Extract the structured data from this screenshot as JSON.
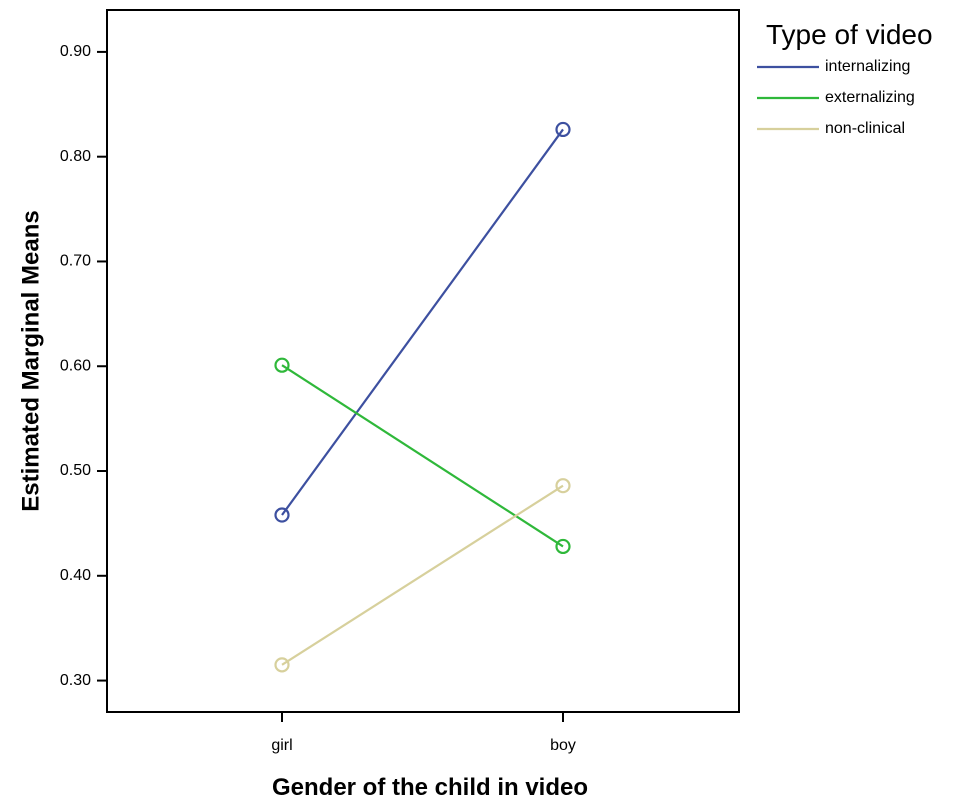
{
  "chart_data": {
    "type": "line",
    "xlabel": "Gender of the child in video",
    "ylabel": "Estimated Marginal Means",
    "categories": [
      "girl",
      "boy"
    ],
    "ylim": [
      0.27,
      0.94
    ],
    "yticks": [
      "0.30",
      "0.40",
      "0.50",
      "0.60",
      "0.70",
      "0.80",
      "0.90"
    ],
    "legend_title": "Type of video",
    "legend_position": "top-right outside plot",
    "grid": false,
    "markers": "open-circle",
    "series": [
      {
        "name": "internalizing",
        "color": "#3d50a0",
        "values": [
          0.458,
          0.826
        ]
      },
      {
        "name": "externalizing",
        "color": "#2fb83a",
        "values": [
          0.601,
          0.428
        ]
      },
      {
        "name": "non-clinical",
        "color": "#d7d09c",
        "values": [
          0.315,
          0.486
        ]
      }
    ]
  }
}
